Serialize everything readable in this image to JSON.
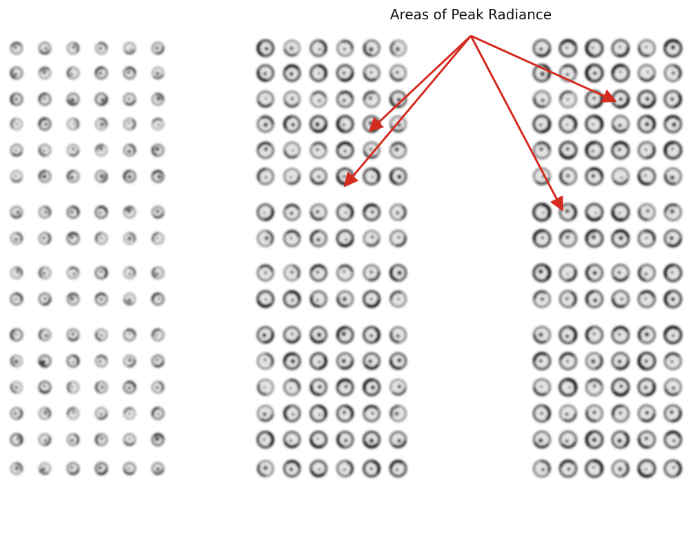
{
  "annotation": {
    "label": "Areas of Peak Radiance"
  }
}
